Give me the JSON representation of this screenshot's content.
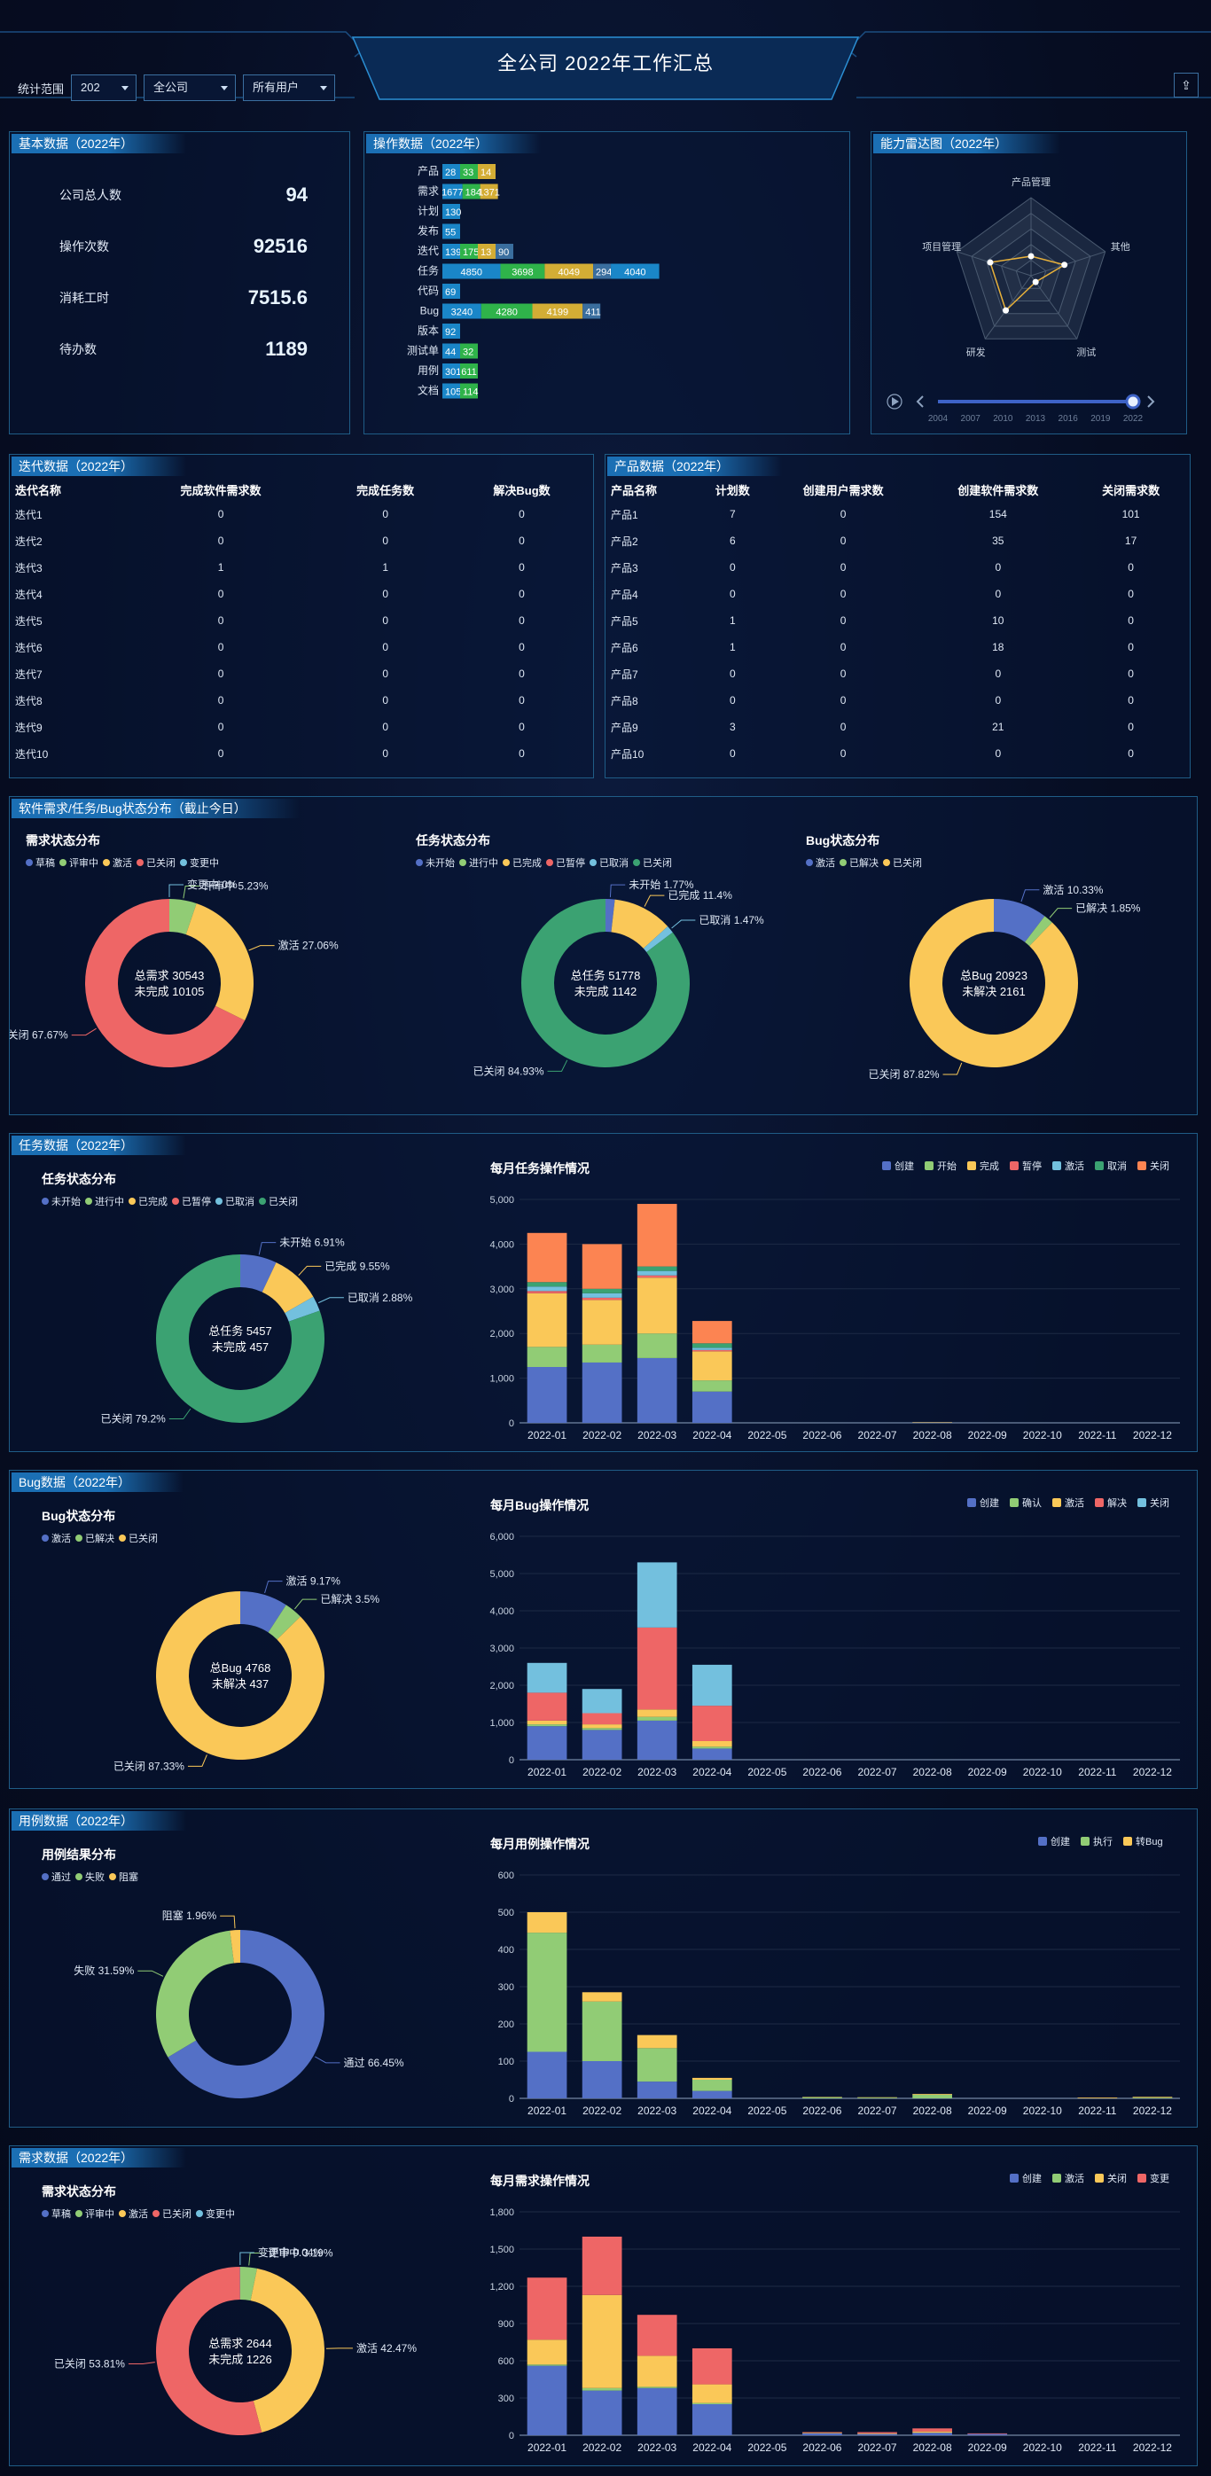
{
  "title": "全公司 2022年工作汇总",
  "filters": {
    "label": "统计范围",
    "year": "202",
    "scope": "全公司",
    "user": "所有用户"
  },
  "basic": {
    "title": "基本数据（2022年）",
    "items": [
      {
        "label": "公司总人数",
        "value": "94"
      },
      {
        "label": "操作次数",
        "value": "92516"
      },
      {
        "label": "消耗工时",
        "value": "7515.6"
      },
      {
        "label": "待办数",
        "value": "1189"
      }
    ]
  },
  "ops": {
    "title": "操作数据（2022年）",
    "rows": [
      {
        "label": "产品",
        "segs": [
          28,
          33,
          14
        ]
      },
      {
        "label": "需求",
        "segs": [
          1677,
          184,
          1371
        ]
      },
      {
        "label": "计划",
        "segs": [
          130
        ]
      },
      {
        "label": "发布",
        "segs": [
          55
        ]
      },
      {
        "label": "迭代",
        "segs": [
          139,
          175,
          13,
          90
        ]
      },
      {
        "label": "任务",
        "segs": [
          4850,
          3698,
          4049,
          294,
          4040
        ]
      },
      {
        "label": "代码",
        "segs": [
          69
        ]
      },
      {
        "label": "Bug",
        "segs": [
          3240,
          4280,
          4199,
          411
        ]
      },
      {
        "label": "版本",
        "segs": [
          92
        ]
      },
      {
        "label": "测试单",
        "segs": [
          44,
          32
        ]
      },
      {
        "label": "用例",
        "segs": [
          301,
          611
        ]
      },
      {
        "label": "文档",
        "segs": [
          105,
          114
        ]
      }
    ],
    "colors": [
      "#1a86c8",
      "#2fb34a",
      "#d3ad35",
      "#3a6e9e",
      "#1a86c8"
    ]
  },
  "radar": {
    "title": "能力雷达图（2022年）",
    "axes": [
      "产品管理",
      "其他",
      "测试",
      "研发",
      "项目管理"
    ],
    "values": [
      0.25,
      0.45,
      0.1,
      0.55,
      0.55
    ],
    "timeline": [
      "2004",
      "2007",
      "2010",
      "2013",
      "2016",
      "2019",
      "2022"
    ]
  },
  "iter": {
    "title": "迭代数据（2022年）",
    "headers": [
      "迭代名称",
      "完成软件需求数",
      "完成任务数",
      "解决Bug数"
    ],
    "rows": [
      [
        "迭代1",
        "0",
        "0",
        "0"
      ],
      [
        "迭代2",
        "0",
        "0",
        "0"
      ],
      [
        "迭代3",
        "1",
        "1",
        "0"
      ],
      [
        "迭代4",
        "0",
        "0",
        "0"
      ],
      [
        "迭代5",
        "0",
        "0",
        "0"
      ],
      [
        "迭代6",
        "0",
        "0",
        "0"
      ],
      [
        "迭代7",
        "0",
        "0",
        "0"
      ],
      [
        "迭代8",
        "0",
        "0",
        "0"
      ],
      [
        "迭代9",
        "0",
        "0",
        "0"
      ],
      [
        "迭代10",
        "0",
        "0",
        "0"
      ]
    ]
  },
  "prod": {
    "title": "产品数据（2022年）",
    "headers": [
      "产品名称",
      "计划数",
      "创建用户需求数",
      "创建软件需求数",
      "关闭需求数"
    ],
    "rows": [
      [
        "产品1",
        "7",
        "0",
        "154",
        "101"
      ],
      [
        "产品2",
        "6",
        "0",
        "35",
        "17"
      ],
      [
        "产品3",
        "0",
        "0",
        "0",
        "0"
      ],
      [
        "产品4",
        "0",
        "0",
        "0",
        "0"
      ],
      [
        "产品5",
        "1",
        "0",
        "10",
        "0"
      ],
      [
        "产品6",
        "1",
        "0",
        "18",
        "0"
      ],
      [
        "产品7",
        "0",
        "0",
        "0",
        "0"
      ],
      [
        "产品8",
        "0",
        "0",
        "0",
        "0"
      ],
      [
        "产品9",
        "3",
        "0",
        "21",
        "0"
      ],
      [
        "产品10",
        "0",
        "0",
        "0",
        "0"
      ]
    ]
  },
  "status": {
    "title": "软件需求/任务/Bug状态分布（截止今日）"
  },
  "task": {
    "title": "任务数据（2022年）"
  },
  "bug": {
    "title": "Bug数据（2022年）"
  },
  "case": {
    "title": "用例数据（2022年）"
  },
  "story": {
    "title": "需求数据（2022年）"
  },
  "chart_data": [
    {
      "id": "req",
      "type": "pie",
      "title": "需求状态分布",
      "legend": [
        "草稿",
        "评审中",
        "激活",
        "已关闭",
        "变更中"
      ],
      "colors": [
        "#5470c6",
        "#91cc75",
        "#fac858",
        "#ee6666",
        "#73c0de"
      ],
      "values": [
        0,
        5.23,
        27.06,
        67.67,
        0
      ],
      "labels": [
        "",
        "评审中 5.23%",
        "激活 27.06%",
        "已关闭 67.67%",
        "变更中 0%"
      ],
      "center": [
        "总需求 30543",
        "未完成 10105"
      ]
    },
    {
      "id": "task",
      "type": "pie",
      "title": "任务状态分布",
      "legend": [
        "未开始",
        "进行中",
        "已完成",
        "已暂停",
        "已取消",
        "已关闭"
      ],
      "colors": [
        "#5470c6",
        "#91cc75",
        "#fac858",
        "#ee6666",
        "#73c0de",
        "#3ba272"
      ],
      "values": [
        1.77,
        0,
        11.4,
        0,
        1.47,
        84.93
      ],
      "labels": [
        "未开始 1.77%",
        "",
        "已完成 11.4%",
        "",
        "已取消 1.47%",
        "已关闭 84.93%"
      ],
      "center": [
        "总任务 51778",
        "未完成 1142"
      ]
    },
    {
      "id": "bugs",
      "type": "pie",
      "title": "Bug状态分布",
      "legend": [
        "激活",
        "已解决",
        "已关闭"
      ],
      "colors": [
        "#5470c6",
        "#91cc75",
        "#fac858"
      ],
      "values": [
        10.33,
        1.85,
        87.82
      ],
      "labels": [
        "激活 10.33%",
        "已解决 1.85%",
        "已关闭 87.82%"
      ],
      "center": [
        "总Bug 20923",
        "未解决 2161"
      ]
    },
    {
      "id": "task2",
      "type": "pie",
      "title": "任务状态分布",
      "legend": [
        "未开始",
        "进行中",
        "已完成",
        "已暂停",
        "已取消",
        "已关闭"
      ],
      "colors": [
        "#5470c6",
        "#91cc75",
        "#fac858",
        "#ee6666",
        "#73c0de",
        "#3ba272"
      ],
      "values": [
        6.91,
        0,
        9.55,
        0,
        2.88,
        79.2
      ],
      "labels": [
        "未开始 6.91%",
        "",
        "已完成 9.55%",
        "",
        "已取消 2.88%",
        "已关闭 79.2%"
      ],
      "center": [
        "总任务 5457",
        "未完成 457"
      ]
    },
    {
      "id": "bug2",
      "type": "pie",
      "title": "Bug状态分布",
      "legend": [
        "激活",
        "已解决",
        "已关闭"
      ],
      "colors": [
        "#5470c6",
        "#91cc75",
        "#fac858"
      ],
      "values": [
        9.17,
        3.5,
        87.33
      ],
      "labels": [
        "激活 9.17%",
        "已解决 3.5%",
        "已关闭 87.33%"
      ],
      "center": [
        "总Bug 4768",
        "未解决 437"
      ]
    },
    {
      "id": "case",
      "type": "pie",
      "title": "用例结果分布",
      "legend": [
        "通过",
        "失败",
        "阻塞"
      ],
      "colors": [
        "#5470c6",
        "#91cc75",
        "#fac858"
      ],
      "values": [
        66.45,
        31.59,
        1.96
      ],
      "labels": [
        "通过 66.45%",
        "失败 31.59%",
        "阻塞 1.96%"
      ],
      "center": []
    },
    {
      "id": "story",
      "type": "pie",
      "title": "需求状态分布",
      "legend": [
        "草稿",
        "评审中",
        "激活",
        "已关闭",
        "变更中"
      ],
      "colors": [
        "#5470c6",
        "#91cc75",
        "#fac858",
        "#ee6666",
        "#73c0de"
      ],
      "values": [
        0,
        3.19,
        42.47,
        53.81,
        0.04
      ],
      "labels": [
        "",
        "评审中 3.19%",
        "激活 42.47%",
        "已关闭 53.81%",
        "变更中 0.04%"
      ],
      "center": [
        "总需求 2644",
        "未完成 1226"
      ]
    },
    {
      "id": "taskbar",
      "type": "bar",
      "title": "每月任务操作情况",
      "categories": [
        "2022-01",
        "2022-02",
        "2022-03",
        "2022-04",
        "2022-05",
        "2022-06",
        "2022-07",
        "2022-08",
        "2022-09",
        "2022-10",
        "2022-11",
        "2022-12"
      ],
      "ylim": [
        0,
        5000
      ],
      "yticks": [
        0,
        1000,
        2000,
        3000,
        4000,
        5000
      ],
      "series": [
        {
          "name": "创建",
          "color": "#5470c6",
          "values": [
            1250,
            1350,
            1450,
            700,
            0,
            0,
            0,
            5,
            0,
            0,
            0,
            0
          ]
        },
        {
          "name": "开始",
          "color": "#91cc75",
          "values": [
            450,
            400,
            550,
            250,
            0,
            0,
            0,
            5,
            0,
            0,
            0,
            0
          ]
        },
        {
          "name": "完成",
          "color": "#fac858",
          "values": [
            1200,
            1000,
            1250,
            650,
            0,
            0,
            0,
            5,
            0,
            0,
            0,
            0
          ]
        },
        {
          "name": "暂停",
          "color": "#ee6666",
          "values": [
            50,
            50,
            50,
            30,
            0,
            0,
            0,
            0,
            0,
            0,
            0,
            0
          ]
        },
        {
          "name": "激活",
          "color": "#73c0de",
          "values": [
            100,
            100,
            100,
            50,
            0,
            0,
            0,
            0,
            0,
            0,
            0,
            0
          ]
        },
        {
          "name": "取消",
          "color": "#3ba272",
          "values": [
            100,
            100,
            100,
            100,
            0,
            0,
            0,
            0,
            0,
            0,
            0,
            0
          ]
        },
        {
          "name": "关闭",
          "color": "#fc8452",
          "values": [
            1100,
            1000,
            1400,
            500,
            0,
            0,
            0,
            5,
            0,
            0,
            0,
            0
          ]
        }
      ]
    },
    {
      "id": "bugbar",
      "type": "bar",
      "title": "每月Bug操作情况",
      "categories": [
        "2022-01",
        "2022-02",
        "2022-03",
        "2022-04",
        "2022-05",
        "2022-06",
        "2022-07",
        "2022-08",
        "2022-09",
        "2022-10",
        "2022-11",
        "2022-12"
      ],
      "ylim": [
        0,
        6000
      ],
      "yticks": [
        0,
        1000,
        2000,
        3000,
        4000,
        5000,
        6000
      ],
      "series": [
        {
          "name": "创建",
          "color": "#5470c6",
          "values": [
            900,
            800,
            1050,
            300,
            0,
            0,
            0,
            0,
            0,
            0,
            0,
            0
          ]
        },
        {
          "name": "确认",
          "color": "#91cc75",
          "values": [
            50,
            50,
            100,
            50,
            0,
            0,
            0,
            0,
            0,
            0,
            0,
            0
          ]
        },
        {
          "name": "激活",
          "color": "#fac858",
          "values": [
            100,
            100,
            200,
            150,
            0,
            0,
            0,
            0,
            0,
            0,
            0,
            0
          ]
        },
        {
          "name": "解决",
          "color": "#ee6666",
          "values": [
            750,
            300,
            2200,
            950,
            0,
            0,
            0,
            0,
            0,
            0,
            0,
            0
          ]
        },
        {
          "name": "关闭",
          "color": "#73c0de",
          "values": [
            800,
            650,
            1750,
            1100,
            0,
            0,
            0,
            0,
            0,
            0,
            0,
            0
          ]
        }
      ]
    },
    {
      "id": "casebar",
      "type": "bar",
      "title": "每月用例操作情况",
      "categories": [
        "2022-01",
        "2022-02",
        "2022-03",
        "2022-04",
        "2022-05",
        "2022-06",
        "2022-07",
        "2022-08",
        "2022-09",
        "2022-10",
        "2022-11",
        "2022-12"
      ],
      "ylim": [
        0,
        600
      ],
      "yticks": [
        0,
        100,
        200,
        300,
        400,
        500,
        600
      ],
      "series": [
        {
          "name": "创建",
          "color": "#5470c6",
          "values": [
            125,
            100,
            45,
            20,
            0,
            0,
            0,
            0,
            0,
            0,
            0,
            0
          ]
        },
        {
          "name": "执行",
          "color": "#91cc75",
          "values": [
            320,
            160,
            90,
            30,
            0,
            3,
            2,
            10,
            0,
            0,
            0,
            2
          ]
        },
        {
          "name": "转Bug",
          "color": "#fac858",
          "values": [
            55,
            25,
            35,
            5,
            0,
            1,
            1,
            2,
            0,
            0,
            2,
            2
          ]
        }
      ]
    },
    {
      "id": "storybar",
      "type": "bar",
      "title": "每月需求操作情况",
      "categories": [
        "2022-01",
        "2022-02",
        "2022-03",
        "2022-04",
        "2022-05",
        "2022-06",
        "2022-07",
        "2022-08",
        "2022-09",
        "2022-10",
        "2022-11",
        "2022-12"
      ],
      "ylim": [
        0,
        1800
      ],
      "yticks": [
        0,
        300,
        600,
        900,
        1200,
        1500,
        1800
      ],
      "series": [
        {
          "name": "创建",
          "color": "#5470c6",
          "values": [
            560,
            360,
            380,
            250,
            0,
            15,
            10,
            20,
            10,
            0,
            0,
            0
          ]
        },
        {
          "name": "激活",
          "color": "#91cc75",
          "values": [
            10,
            20,
            10,
            10,
            0,
            0,
            0,
            0,
            0,
            0,
            0,
            0
          ]
        },
        {
          "name": "关闭",
          "color": "#fac858",
          "values": [
            200,
            750,
            250,
            150,
            0,
            5,
            5,
            10,
            0,
            0,
            0,
            0
          ]
        },
        {
          "name": "变更",
          "color": "#ee6666",
          "values": [
            500,
            470,
            330,
            290,
            0,
            5,
            10,
            25,
            5,
            0,
            0,
            0
          ]
        }
      ]
    }
  ]
}
